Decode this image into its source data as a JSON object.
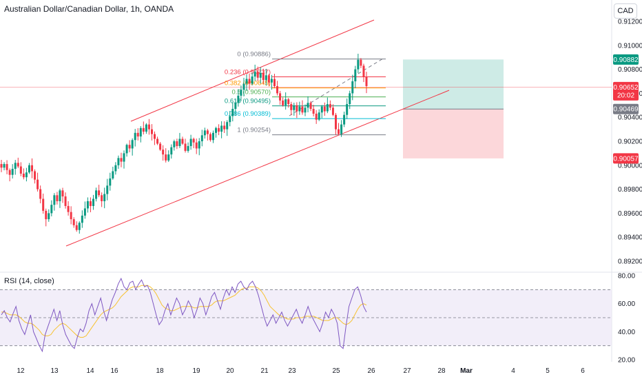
{
  "header": {
    "title": "Australian Dollar/Canadian Dollar, 1h, OANDA",
    "currency": "CAD"
  },
  "rsi_panel": {
    "label": "RSI (14, close)"
  },
  "price_badges": {
    "current": {
      "value": "0.90652",
      "timer": "20:02",
      "color": "#f23645"
    },
    "take_profit": {
      "value": "0.90882",
      "color": "#089981"
    },
    "entry": {
      "value": "0.90469",
      "color": "#787b86"
    },
    "stop_loss": {
      "value": "0.90057",
      "color": "#f23645"
    }
  },
  "colors": {
    "up": "#089981",
    "down": "#f23645",
    "channel": "#f23645",
    "rsi_line": "#7e57c2",
    "rsi_ma": "#f7c22f",
    "rsi_band": "#ede7f6"
  },
  "chart_data": [
    {
      "type": "candlestick",
      "title": "Australian Dollar/Canadian Dollar, 1h, OANDA",
      "x_ticks": [
        "12",
        "13",
        "14",
        "16",
        "18",
        "19",
        "20",
        "21",
        "23",
        "25",
        "26",
        "27",
        "28",
        "Mar",
        "4",
        "5",
        "6"
      ],
      "y_ticks": [
        "0.91200",
        "0.91000",
        "0.90800",
        "0.90600",
        "0.90400",
        "0.90200",
        "0.90000",
        "0.89800",
        "0.89600",
        "0.89400",
        "0.89200"
      ],
      "ylim": [
        0.8918,
        0.9127
      ],
      "approx_closes": [
        0.8998,
        0.9001,
        0.8996,
        0.8992,
        0.8997,
        0.9002,
        0.8999,
        0.8993,
        0.899,
        0.8994,
        0.9,
        0.8995,
        0.8988,
        0.898,
        0.8972,
        0.8962,
        0.8955,
        0.896,
        0.8967,
        0.8975,
        0.897,
        0.8979,
        0.8974,
        0.8966,
        0.8961,
        0.8955,
        0.895,
        0.8946,
        0.8952,
        0.8958,
        0.8964,
        0.897,
        0.8966,
        0.8972,
        0.8979,
        0.8975,
        0.897,
        0.8976,
        0.8983,
        0.8989,
        0.8995,
        0.9,
        0.9006,
        0.9003,
        0.901,
        0.9017,
        0.9014,
        0.9021,
        0.9027,
        0.9024,
        0.9031,
        0.9028,
        0.9034,
        0.903,
        0.9026,
        0.9022,
        0.9018,
        0.9013,
        0.9009,
        0.9004,
        0.9009,
        0.9015,
        0.902,
        0.9016,
        0.9022,
        0.9018,
        0.9012,
        0.9016,
        0.9022,
        0.9019,
        0.9014,
        0.902,
        0.9025,
        0.9029,
        0.9026,
        0.9021,
        0.9027,
        0.9031,
        0.9028,
        0.9033,
        0.903,
        0.9036,
        0.9041,
        0.9047,
        0.9052,
        0.9058,
        0.9063,
        0.9068,
        0.9072,
        0.9068,
        0.9074,
        0.9078,
        0.9073,
        0.9077,
        0.9071,
        0.9075,
        0.9069,
        0.9072,
        0.9066,
        0.906,
        0.9054,
        0.905,
        0.9055,
        0.9051,
        0.9046,
        0.905,
        0.9045,
        0.9049,
        0.9044,
        0.9048,
        0.9052,
        0.9047,
        0.9043,
        0.9038,
        0.9044,
        0.9049,
        0.9045,
        0.9051,
        0.9048,
        0.9042,
        0.903,
        0.9026,
        0.9034,
        0.9042,
        0.9051,
        0.906,
        0.907,
        0.908,
        0.9088,
        0.9083,
        0.9074,
        0.9066
      ],
      "fibonacci": [
        {
          "level": "0",
          "price": "0.90886"
        },
        {
          "level": "0.236",
          "price": "0.90737"
        },
        {
          "level": "0.382",
          "price": "0.90645"
        },
        {
          "level": "0.5",
          "price": "0.90570"
        },
        {
          "level": "0.618",
          "price": "0.90495"
        },
        {
          "level": "0.786",
          "price": "0.90389"
        },
        {
          "level": "1",
          "price": "0.90254"
        }
      ],
      "position_tool": {
        "entry": 0.90469,
        "take_profit": 0.90882,
        "stop_loss": 0.90057
      },
      "current_price": 0.90652
    },
    {
      "type": "line",
      "title": "RSI (14, close)",
      "y_ticks": [
        "80.00",
        "60.00",
        "40.00",
        "20.00"
      ],
      "ylim": [
        18,
        82
      ],
      "bands": [
        70,
        50,
        30
      ],
      "rsi": [
        52,
        55,
        50,
        47,
        53,
        58,
        48,
        42,
        38,
        45,
        52,
        40,
        35,
        30,
        26,
        38,
        44,
        50,
        56,
        48,
        55,
        45,
        38,
        34,
        30,
        28,
        36,
        42,
        40,
        46,
        55,
        60,
        52,
        58,
        64,
        55,
        48,
        56,
        63,
        68,
        74,
        78,
        72,
        70,
        75,
        76,
        70,
        74,
        77,
        72,
        73,
        68,
        60,
        52,
        45,
        48,
        55,
        60,
        52,
        58,
        64,
        60,
        52,
        56,
        62,
        58,
        50,
        56,
        64,
        60,
        52,
        58,
        65,
        68,
        62,
        56,
        64,
        70,
        66,
        72,
        68,
        74,
        76,
        72,
        70,
        74,
        76,
        72,
        66,
        58,
        50,
        44,
        48,
        52,
        46,
        50,
        54,
        48,
        44,
        48,
        52,
        56,
        50,
        46,
        52,
        58,
        52,
        48,
        44,
        40,
        46,
        54,
        50,
        56,
        52,
        46,
        30,
        28,
        44,
        58,
        64,
        70,
        72,
        66,
        58,
        54
      ],
      "rsi_ma": [
        54,
        54,
        53,
        52,
        52,
        52,
        51,
        49,
        47,
        46,
        46,
        45,
        43,
        41,
        38,
        37,
        37,
        38,
        41,
        43,
        45,
        46,
        45,
        43,
        41,
        39,
        37,
        36,
        36,
        37,
        40,
        43,
        46,
        49,
        52,
        54,
        55,
        56,
        57,
        59,
        62,
        65,
        67,
        69,
        71,
        72,
        72,
        72,
        73,
        73,
        73,
        72,
        70,
        67,
        63,
        59,
        57,
        56,
        55,
        55,
        56,
        57,
        58,
        58,
        58,
        58,
        57,
        57,
        58,
        58,
        58,
        58,
        59,
        61,
        62,
        62,
        62,
        63,
        64,
        65,
        66,
        68,
        70,
        71,
        71,
        72,
        72,
        72,
        71,
        69,
        66,
        62,
        58,
        56,
        54,
        52,
        51,
        50,
        49,
        49,
        49,
        50,
        50,
        50,
        51,
        51,
        51,
        51,
        50,
        49,
        48,
        48,
        48,
        49,
        50,
        50,
        48,
        46,
        45,
        46,
        48,
        52,
        56,
        59,
        60,
        59
      ]
    }
  ]
}
